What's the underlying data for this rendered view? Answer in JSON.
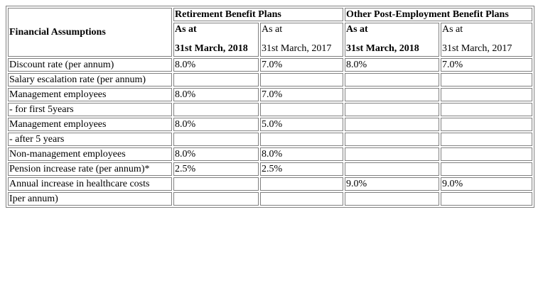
{
  "table": {
    "header": {
      "label": "Financial Assumptions",
      "groups": [
        "Retirement Benefit Plans",
        "Other Post-Employment Benefit Plans"
      ],
      "sub_columns": [
        {
          "line1": "As at",
          "line2": "31st March, 2018",
          "bold": true
        },
        {
          "line1": "As at",
          "line2": "31st March, 2017",
          "bold": false
        },
        {
          "line1": "As at",
          "line2": "31st March, 2018",
          "bold": true
        },
        {
          "line1": "As at",
          "line2": "31st March, 2017",
          "bold": false
        }
      ]
    },
    "rows": [
      {
        "label": "Discount rate (per annum)",
        "cells": [
          "8.0%",
          "7.0%",
          "8.0%",
          "7.0%"
        ]
      },
      {
        "label": "Salary escalation rate (per annum)",
        "cells": [
          "",
          "",
          "",
          ""
        ]
      },
      {
        "label": "Management employees",
        "cells": [
          "8.0%",
          "7.0%",
          "",
          ""
        ]
      },
      {
        "label": "- for first 5years",
        "cells": [
          "",
          "",
          "",
          ""
        ]
      },
      {
        "label": "Management employees",
        "cells": [
          "8.0%",
          "5.0%",
          "",
          ""
        ]
      },
      {
        "label": "- after 5 years",
        "cells": [
          "",
          "",
          "",
          ""
        ]
      },
      {
        "label": "Non-management employees",
        "cells": [
          "8.0%",
          "8.0%",
          "",
          ""
        ]
      },
      {
        "label": "Pension increase rate (per annum)*",
        "cells": [
          "2.5%",
          "2.5%",
          "",
          ""
        ]
      },
      {
        "label": "Annual increase in healthcare costs",
        "cells": [
          "",
          "",
          "9.0%",
          "9.0%"
        ]
      },
      {
        "label": "Iper annum)",
        "cells": [
          "",
          "",
          "",
          ""
        ]
      }
    ]
  }
}
